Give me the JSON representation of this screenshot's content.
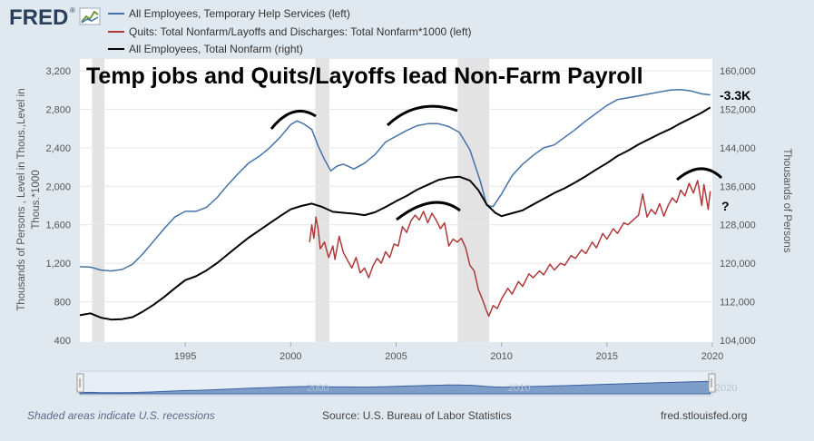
{
  "header": {
    "logo_text": "FRED",
    "logo_registered": "®"
  },
  "chart_data": {
    "type": "line",
    "title": "Temp jobs and Quits/Layoffs lead Non-Farm Payroll",
    "left_axis": {
      "label_line1": "Thousands of Persons , Level in Thous.,Level in",
      "label_line2": "Thous.*1000",
      "ticks": [
        "400",
        "800",
        "1,200",
        "1,600",
        "2,000",
        "2,400",
        "2,800",
        "3,200"
      ],
      "min": 400,
      "max": 3200
    },
    "right_axis": {
      "label": "Thousands of Persons",
      "ticks": [
        "104,000",
        "112,000",
        "120,000",
        "128,000",
        "136,000",
        "144,000",
        "152,000",
        "160,000"
      ],
      "min": 104000,
      "max": 160000
    },
    "x_axis": {
      "ticks": [
        "1995",
        "2000",
        "2005",
        "2010",
        "2015",
        "2020"
      ],
      "min": 1990.0,
      "max": 2020.0
    },
    "recessions": [
      [
        1990.58,
        1991.17
      ],
      [
        2001.17,
        2001.83
      ],
      [
        2007.92,
        2009.42
      ]
    ],
    "series": [
      {
        "name": "All Employees, Temporary Help Services (left)",
        "color": "#4572a7",
        "axis": "left",
        "points": [
          [
            1990.0,
            1165
          ],
          [
            1990.5,
            1160
          ],
          [
            1991.0,
            1130
          ],
          [
            1991.5,
            1120
          ],
          [
            1992.0,
            1135
          ],
          [
            1992.5,
            1190
          ],
          [
            1993.0,
            1300
          ],
          [
            1993.5,
            1430
          ],
          [
            1994.0,
            1560
          ],
          [
            1994.5,
            1680
          ],
          [
            1995.0,
            1740
          ],
          [
            1995.5,
            1740
          ],
          [
            1996.0,
            1780
          ],
          [
            1996.5,
            1880
          ],
          [
            1997.0,
            2010
          ],
          [
            1997.5,
            2130
          ],
          [
            1998.0,
            2240
          ],
          [
            1998.5,
            2310
          ],
          [
            1999.0,
            2400
          ],
          [
            1999.5,
            2510
          ],
          [
            2000.0,
            2640
          ],
          [
            2000.3,
            2680
          ],
          [
            2000.6,
            2650
          ],
          [
            2001.0,
            2590
          ],
          [
            2001.3,
            2420
          ],
          [
            2001.6,
            2280
          ],
          [
            2001.9,
            2160
          ],
          [
            2002.2,
            2210
          ],
          [
            2002.5,
            2230
          ],
          [
            2003.0,
            2180
          ],
          [
            2003.5,
            2240
          ],
          [
            2004.0,
            2330
          ],
          [
            2004.5,
            2460
          ],
          [
            2005.0,
            2520
          ],
          [
            2005.5,
            2580
          ],
          [
            2006.0,
            2630
          ],
          [
            2006.5,
            2650
          ],
          [
            2007.0,
            2650
          ],
          [
            2007.5,
            2620
          ],
          [
            2008.0,
            2560
          ],
          [
            2008.5,
            2380
          ],
          [
            2009.0,
            2050
          ],
          [
            2009.3,
            1800
          ],
          [
            2009.6,
            1790
          ],
          [
            2010.0,
            1920
          ],
          [
            2010.5,
            2110
          ],
          [
            2011.0,
            2230
          ],
          [
            2011.5,
            2320
          ],
          [
            2012.0,
            2400
          ],
          [
            2012.5,
            2430
          ],
          [
            2013.0,
            2510
          ],
          [
            2013.5,
            2590
          ],
          [
            2014.0,
            2680
          ],
          [
            2014.5,
            2760
          ],
          [
            2015.0,
            2840
          ],
          [
            2015.5,
            2900
          ],
          [
            2016.0,
            2920
          ],
          [
            2016.5,
            2940
          ],
          [
            2017.0,
            2960
          ],
          [
            2017.5,
            2980
          ],
          [
            2018.0,
            3000
          ],
          [
            2018.5,
            3005
          ],
          [
            2019.0,
            2990
          ],
          [
            2019.5,
            2960
          ],
          [
            2019.9,
            2950
          ]
        ]
      },
      {
        "name": "Quits: Total Nonfarm/Layoffs and Discharges: Total Nonfarm*1000 (left)",
        "color": "#b03a3a",
        "axis": "left",
        "points": [
          [
            2000.9,
            1420
          ],
          [
            2001.0,
            1600
          ],
          [
            2001.1,
            1460
          ],
          [
            2001.2,
            1680
          ],
          [
            2001.3,
            1560
          ],
          [
            2001.4,
            1350
          ],
          [
            2001.6,
            1420
          ],
          [
            2001.8,
            1260
          ],
          [
            2002.0,
            1380
          ],
          [
            2002.1,
            1240
          ],
          [
            2002.3,
            1480
          ],
          [
            2002.5,
            1310
          ],
          [
            2002.7,
            1230
          ],
          [
            2002.9,
            1150
          ],
          [
            2003.1,
            1260
          ],
          [
            2003.3,
            1100
          ],
          [
            2003.5,
            1150
          ],
          [
            2003.7,
            1050
          ],
          [
            2003.9,
            1170
          ],
          [
            2004.1,
            1250
          ],
          [
            2004.3,
            1200
          ],
          [
            2004.5,
            1320
          ],
          [
            2004.7,
            1260
          ],
          [
            2004.9,
            1400
          ],
          [
            2005.1,
            1380
          ],
          [
            2005.3,
            1580
          ],
          [
            2005.5,
            1520
          ],
          [
            2005.7,
            1640
          ],
          [
            2005.9,
            1700
          ],
          [
            2006.1,
            1650
          ],
          [
            2006.3,
            1740
          ],
          [
            2006.5,
            1620
          ],
          [
            2006.7,
            1720
          ],
          [
            2006.9,
            1650
          ],
          [
            2007.1,
            1560
          ],
          [
            2007.3,
            1620
          ],
          [
            2007.5,
            1380
          ],
          [
            2007.7,
            1450
          ],
          [
            2007.9,
            1420
          ],
          [
            2008.1,
            1460
          ],
          [
            2008.3,
            1360
          ],
          [
            2008.5,
            1180
          ],
          [
            2008.7,
            1120
          ],
          [
            2008.9,
            930
          ],
          [
            2009.1,
            820
          ],
          [
            2009.3,
            700
          ],
          [
            2009.4,
            650
          ],
          [
            2009.6,
            760
          ],
          [
            2009.8,
            730
          ],
          [
            2010.0,
            830
          ],
          [
            2010.3,
            940
          ],
          [
            2010.5,
            880
          ],
          [
            2010.8,
            1010
          ],
          [
            2011.0,
            960
          ],
          [
            2011.3,
            1090
          ],
          [
            2011.5,
            1050
          ],
          [
            2011.8,
            1120
          ],
          [
            2012.0,
            1080
          ],
          [
            2012.3,
            1190
          ],
          [
            2012.5,
            1130
          ],
          [
            2012.8,
            1200
          ],
          [
            2013.0,
            1180
          ],
          [
            2013.3,
            1280
          ],
          [
            2013.5,
            1250
          ],
          [
            2013.8,
            1340
          ],
          [
            2014.0,
            1300
          ],
          [
            2014.3,
            1420
          ],
          [
            2014.5,
            1360
          ],
          [
            2014.8,
            1510
          ],
          [
            2015.0,
            1450
          ],
          [
            2015.3,
            1560
          ],
          [
            2015.5,
            1510
          ],
          [
            2015.8,
            1620
          ],
          [
            2016.0,
            1600
          ],
          [
            2016.3,
            1660
          ],
          [
            2016.5,
            1700
          ],
          [
            2016.7,
            1920
          ],
          [
            2016.9,
            1680
          ],
          [
            2017.1,
            1760
          ],
          [
            2017.3,
            1710
          ],
          [
            2017.5,
            1820
          ],
          [
            2017.7,
            1690
          ],
          [
            2017.9,
            1800
          ],
          [
            2018.1,
            1880
          ],
          [
            2018.3,
            1830
          ],
          [
            2018.5,
            1960
          ],
          [
            2018.7,
            1900
          ],
          [
            2018.9,
            2030
          ],
          [
            2019.1,
            1930
          ],
          [
            2019.3,
            2060
          ],
          [
            2019.5,
            1800
          ],
          [
            2019.6,
            2020
          ],
          [
            2019.8,
            1760
          ],
          [
            2019.9,
            1950
          ]
        ]
      },
      {
        "name": "All Employees, Total Nonfarm (right)",
        "color": "#000000",
        "axis": "right",
        "points": [
          [
            1990.0,
            109200
          ],
          [
            1990.5,
            109600
          ],
          [
            1991.0,
            108700
          ],
          [
            1991.5,
            108300
          ],
          [
            1992.0,
            108400
          ],
          [
            1992.5,
            108800
          ],
          [
            1993.0,
            110000
          ],
          [
            1993.5,
            111400
          ],
          [
            1994.0,
            113000
          ],
          [
            1994.5,
            114800
          ],
          [
            1995.0,
            116500
          ],
          [
            1995.5,
            117300
          ],
          [
            1996.0,
            118500
          ],
          [
            1996.5,
            120000
          ],
          [
            1997.0,
            121800
          ],
          [
            1997.5,
            123600
          ],
          [
            1998.0,
            125300
          ],
          [
            1998.5,
            126800
          ],
          [
            1999.0,
            128300
          ],
          [
            1999.5,
            129800
          ],
          [
            2000.0,
            131200
          ],
          [
            2000.5,
            131900
          ],
          [
            2001.0,
            132400
          ],
          [
            2001.5,
            131700
          ],
          [
            2002.0,
            130700
          ],
          [
            2002.5,
            130500
          ],
          [
            2003.0,
            130300
          ],
          [
            2003.5,
            130000
          ],
          [
            2004.0,
            130600
          ],
          [
            2004.5,
            131700
          ],
          [
            2005.0,
            132900
          ],
          [
            2005.5,
            134000
          ],
          [
            2006.0,
            135300
          ],
          [
            2006.5,
            136300
          ],
          [
            2007.0,
            137300
          ],
          [
            2007.5,
            137800
          ],
          [
            2008.0,
            138000
          ],
          [
            2008.5,
            137200
          ],
          [
            2008.9,
            135200
          ],
          [
            2009.3,
            132200
          ],
          [
            2009.7,
            130500
          ],
          [
            2010.0,
            129800
          ],
          [
            2010.5,
            130400
          ],
          [
            2011.0,
            131000
          ],
          [
            2011.5,
            132200
          ],
          [
            2012.0,
            133400
          ],
          [
            2012.5,
            134600
          ],
          [
            2013.0,
            135600
          ],
          [
            2013.5,
            136800
          ],
          [
            2014.0,
            138100
          ],
          [
            2014.5,
            139500
          ],
          [
            2015.0,
            140800
          ],
          [
            2015.5,
            142300
          ],
          [
            2016.0,
            143400
          ],
          [
            2016.5,
            144700
          ],
          [
            2017.0,
            145800
          ],
          [
            2017.5,
            146900
          ],
          [
            2018.0,
            147900
          ],
          [
            2018.5,
            149100
          ],
          [
            2019.0,
            150200
          ],
          [
            2019.5,
            151300
          ],
          [
            2019.9,
            152400
          ]
        ]
      }
    ],
    "annotations": {
      "nfp_change": "-3.3K",
      "question": "?"
    }
  },
  "range_selector": {
    "labels": [
      "2000",
      "2010",
      "2020"
    ]
  },
  "footer": {
    "recession_note": "Shaded areas indicate U.S. recessions",
    "source": "Source: U.S. Bureau of Labor Statistics",
    "site": "fred.stlouisfed.org"
  }
}
